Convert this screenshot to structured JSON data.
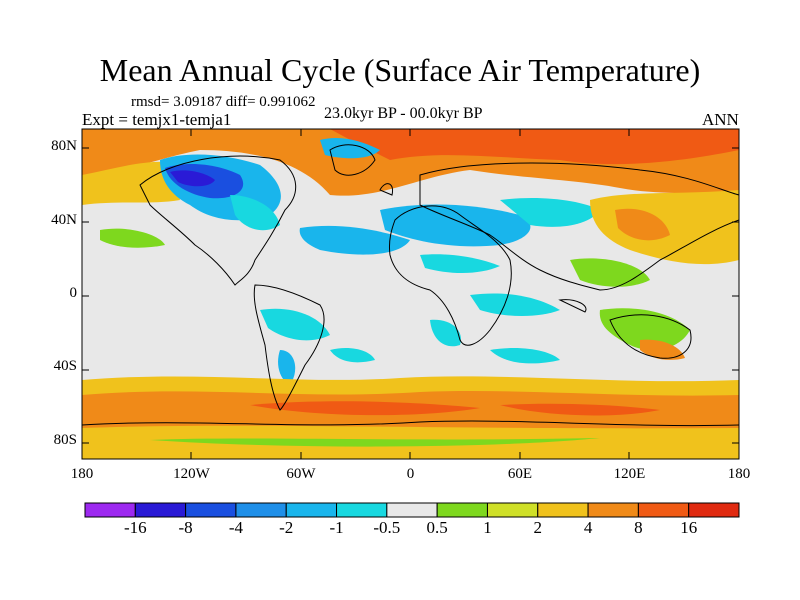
{
  "title": "Mean Annual Cycle (Surface Air Temperature)",
  "stats": "rmsd= 3.09187 diff= 0.991062",
  "experiment": "Expt = temjx1-temja1",
  "period": "23.0kyr BP - 00.0kyr BP",
  "season": "ANN",
  "chart_data": {
    "type": "heatmap",
    "title": "Mean Annual Cycle (Surface Air Temperature)",
    "variable": "Surface Air Temperature difference",
    "x_ticks": [
      "180",
      "120W",
      "60W",
      "0",
      "60E",
      "120E",
      "180"
    ],
    "x_values": [
      -180,
      -120,
      -60,
      0,
      60,
      120,
      180
    ],
    "y_ticks": [
      "80N",
      "40N",
      "0",
      "40S",
      "80S"
    ],
    "y_values": [
      80,
      40,
      0,
      -40,
      -80
    ],
    "xlim": [
      -180,
      180
    ],
    "ylim": [
      -90,
      90
    ],
    "colorbar_labels": [
      "-16",
      "-8",
      "-4",
      "-2",
      "-1",
      "-0.5",
      "0.5",
      "1",
      "2",
      "4",
      "8",
      "16"
    ],
    "colorbar_colors": [
      "#9d29f0",
      "#2a1ad6",
      "#1a4fe0",
      "#1f8fe8",
      "#19b5ec",
      "#18d8e0",
      "#e8e8e8",
      "#7ed81e",
      "#cfe028",
      "#f0c21c",
      "#f08a18",
      "#f05a14",
      "#e02a10"
    ]
  }
}
